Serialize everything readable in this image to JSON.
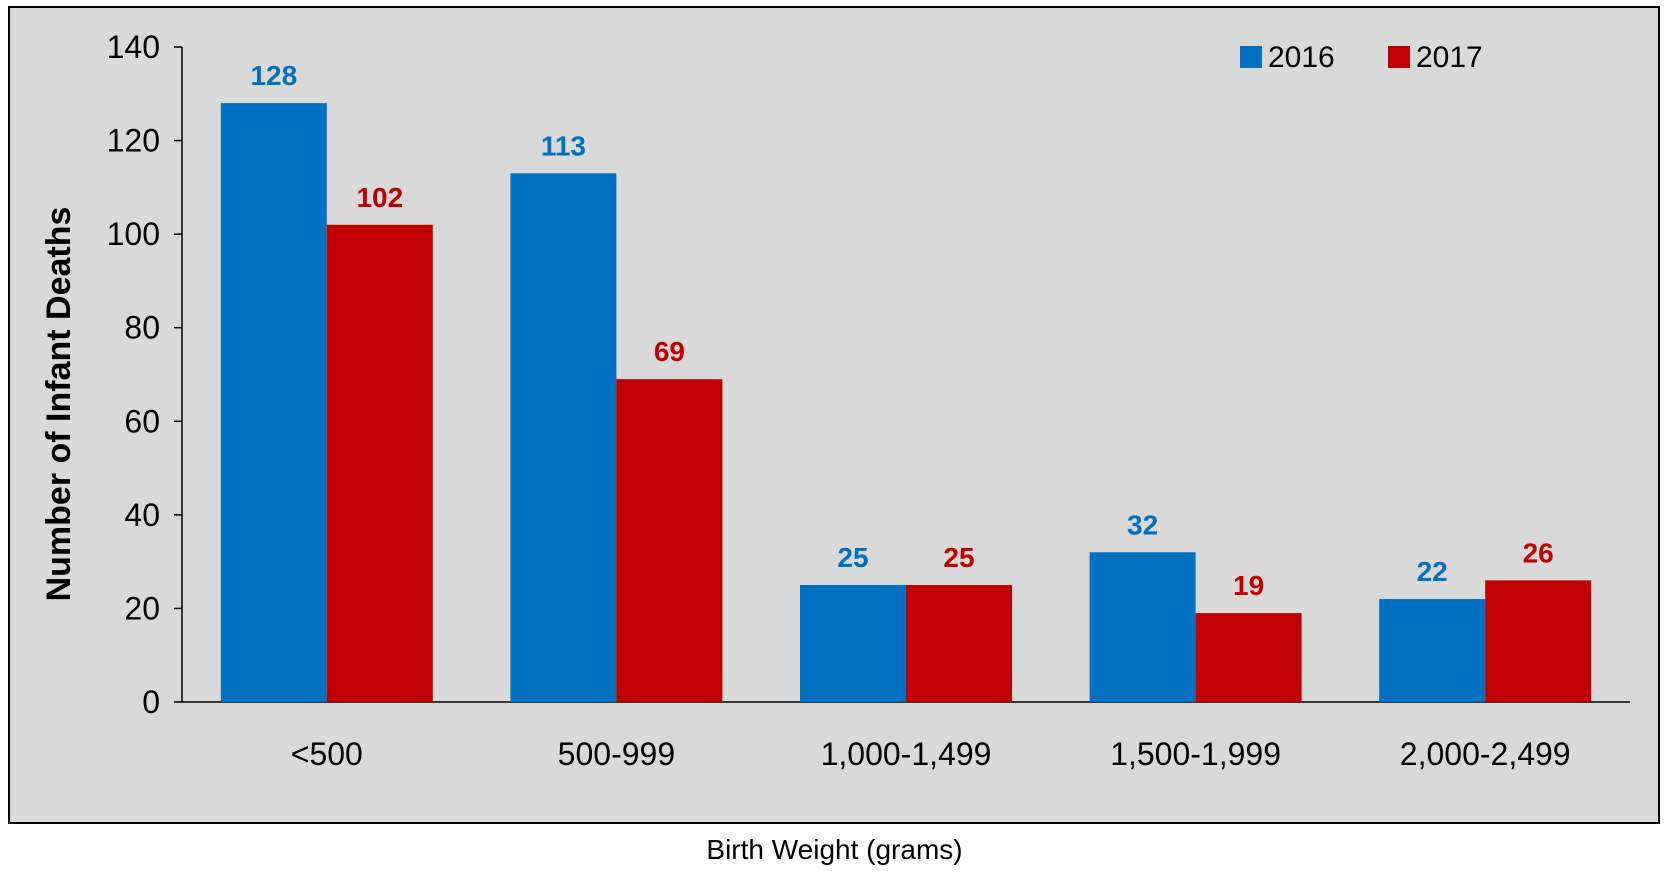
{
  "chart_data": {
    "type": "bar",
    "xlabel": "Birth Weight (grams)",
    "ylabel": "Number of Infant Deaths",
    "categories": [
      "<500",
      "500-999",
      "1,000-1,499",
      "1,500-1,999",
      "2,000-2,499"
    ],
    "series": [
      {
        "name": "2016",
        "color": "#0070c0",
        "values": [
          128,
          113,
          25,
          32,
          22
        ]
      },
      {
        "name": "2017",
        "color": "#c00000",
        "values": [
          102,
          69,
          25,
          19,
          26
        ]
      }
    ],
    "ylim": [
      0,
      140
    ],
    "yticks": [
      0,
      20,
      40,
      60,
      80,
      100,
      120,
      140
    ],
    "grid": false,
    "legend_position": "top-right",
    "data_labels": true
  }
}
